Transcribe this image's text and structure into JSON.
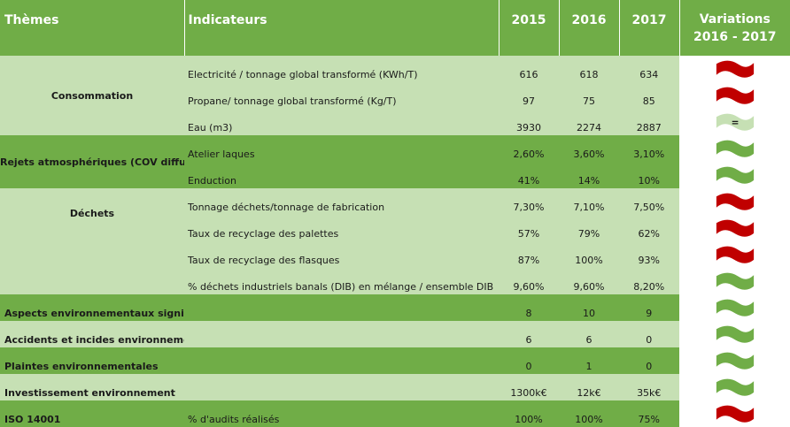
{
  "header": {
    "theme": "Thèmes",
    "indicator": "Indicateurs",
    "years": [
      "2015",
      "2016",
      "2017"
    ],
    "variation_line1": "Variations",
    "variation_line2": "2016 - 2017"
  },
  "colors": {
    "header_green": "#70ad47",
    "light_green": "#c6e0b4",
    "flag_red": "#c00000",
    "flag_green": "#70ad47",
    "flag_pale_green": "#c6e0b4"
  },
  "groups": {
    "consommation": "Consommation",
    "rejets": "Rejets atmosphériques (COV diffus)",
    "dechets": "Déchets"
  },
  "rows": [
    {
      "theme": "",
      "indicator": "Electricité / tonnage global transformé (KWh/T)",
      "v2015": "616",
      "v2016": "618",
      "v2017": "634",
      "flag": "red-flag"
    },
    {
      "theme": "",
      "indicator": "Propane/ tonnage global transformé (Kg/T)",
      "v2015": "97",
      "v2016": "75",
      "v2017": "85",
      "flag": "red-flag"
    },
    {
      "theme": "",
      "indicator": "Eau (m3)",
      "v2015": "3930",
      "v2016": "2274",
      "v2017": "2887",
      "flag": "equal-flag",
      "flag_text": "="
    },
    {
      "theme": "",
      "indicator": "Atelier laques",
      "v2015": "2,60%",
      "v2016": "3,60%",
      "v2017": "3,10%",
      "flag": "green-flag"
    },
    {
      "theme": "",
      "indicator": "Enduction",
      "v2015": "41%",
      "v2016": "14%",
      "v2017": "10%",
      "flag": "green-flag"
    },
    {
      "theme": "",
      "indicator": "Tonnage déchets/tonnage de fabrication",
      "v2015": "7,30%",
      "v2016": "7,10%",
      "v2017": "7,50%",
      "flag": "red-flag"
    },
    {
      "theme": "",
      "indicator": "Taux de recyclage des palettes",
      "v2015": "57%",
      "v2016": "79%",
      "v2017": "62%",
      "flag": "red-flag"
    },
    {
      "theme": "",
      "indicator": "Taux de recyclage des flasques",
      "v2015": "87%",
      "v2016": "100%",
      "v2017": "93%",
      "flag": "red-flag"
    },
    {
      "theme": "",
      "indicator": "% déchets industriels banals (DIB) en mélange / ensemble DIB",
      "v2015": "9,60%",
      "v2016": "9,60%",
      "v2017": "8,20%",
      "flag": "green-flag"
    },
    {
      "theme": "Aspects environnementaux significatifs",
      "indicator": "",
      "v2015": "8",
      "v2016": "10",
      "v2017": "9",
      "flag": "green-flag"
    },
    {
      "theme": "Accidents et incides environnementaux",
      "indicator": "",
      "v2015": "6",
      "v2016": "6",
      "v2017": "0",
      "flag": "green-flag"
    },
    {
      "theme": "Plaintes environnementales",
      "indicator": "",
      "v2015": "0",
      "v2016": "1",
      "v2017": "0",
      "flag": "green-flag"
    },
    {
      "theme": "Investissement environnement",
      "indicator": "",
      "v2015": "1300k€",
      "v2016": "12k€",
      "v2017": "35k€",
      "flag": "green-flag"
    },
    {
      "theme": "ISO 14001",
      "indicator": "% d'audits réalisés",
      "v2015": "100%",
      "v2016": "100%",
      "v2017": "75%",
      "flag": "red-flag"
    }
  ]
}
